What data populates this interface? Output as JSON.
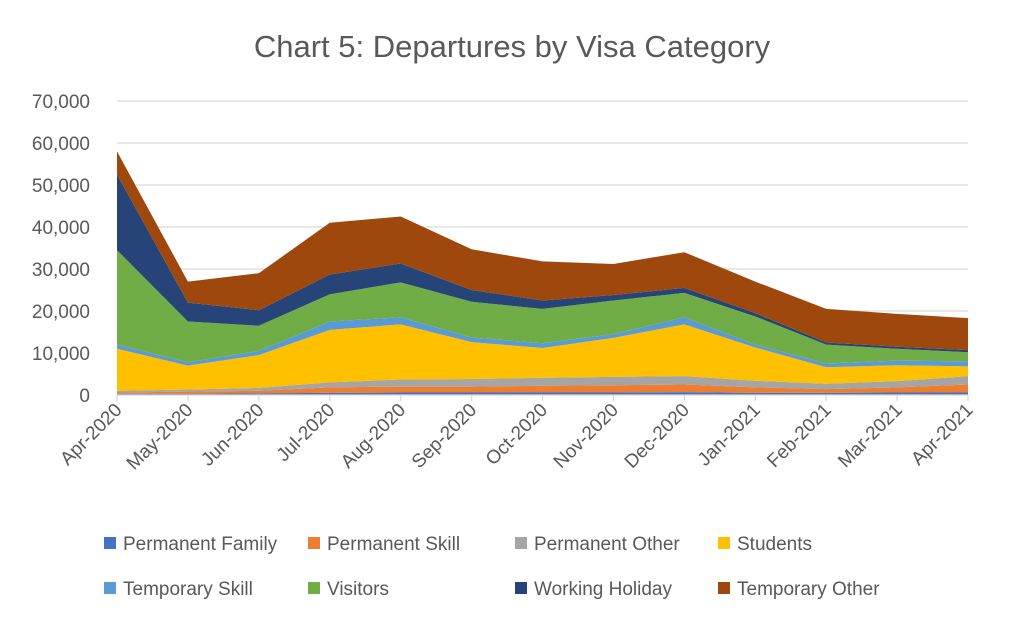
{
  "chart_data": {
    "type": "area",
    "stacked": true,
    "title": "Chart 5: Departures by Visa Category",
    "xlabel": "",
    "ylabel": "",
    "ylim": [
      0,
      70000
    ],
    "yticks": [
      0,
      10000,
      20000,
      30000,
      40000,
      50000,
      60000,
      70000
    ],
    "ytick_labels": [
      "0",
      "10,000",
      "20,000",
      "30,000",
      "40,000",
      "50,000",
      "60,000",
      "70,000"
    ],
    "grid": true,
    "legend_position": "bottom",
    "categories": [
      "Apr-2020",
      "May-2020",
      "Jun-2020",
      "Jul-2020",
      "Aug-2020",
      "Sep-2020",
      "Oct-2020",
      "Nov-2020",
      "Dec-2020",
      "Jan-2021",
      "Feb-2021",
      "Mar-2021",
      "Apr-2021"
    ],
    "series": [
      {
        "name": "Permanent Family",
        "color": "#4472C4",
        "values": [
          300,
          300,
          400,
          500,
          600,
          600,
          600,
          600,
          700,
          500,
          500,
          600,
          600
        ]
      },
      {
        "name": "Permanent Skill",
        "color": "#ED7D31",
        "values": [
          300,
          500,
          600,
          1300,
          1400,
          1400,
          1600,
          1700,
          1800,
          1300,
          900,
          1200,
          1900
        ]
      },
      {
        "name": "Permanent Other",
        "color": "#A5A5A5",
        "values": [
          400,
          500,
          700,
          1200,
          1700,
          1800,
          1900,
          2000,
          2000,
          1600,
          1300,
          1500,
          2000
        ]
      },
      {
        "name": "Students",
        "color": "#FFC000",
        "values": [
          10000,
          5700,
          7800,
          12500,
          13100,
          8800,
          7100,
          9300,
          12300,
          7900,
          3900,
          3800,
          2300
        ]
      },
      {
        "name": "Temporary Skill",
        "color": "#5B9BD5",
        "values": [
          1000,
          800,
          1000,
          2000,
          1700,
          1100,
          1100,
          900,
          1700,
          700,
          900,
          1100,
          1200
        ]
      },
      {
        "name": "Visitors",
        "color": "#70AD47",
        "values": [
          22500,
          9700,
          6000,
          6500,
          8300,
          8500,
          8200,
          8000,
          5800,
          6700,
          4500,
          2800,
          2200
        ]
      },
      {
        "name": "Working Holiday",
        "color": "#264478",
        "values": [
          18000,
          4500,
          3700,
          4700,
          4500,
          2800,
          2000,
          1300,
          1200,
          800,
          500,
          500,
          500
        ]
      },
      {
        "name": "Temporary Other",
        "color": "#9E480E",
        "values": [
          5500,
          5000,
          8800,
          12300,
          11200,
          9700,
          9300,
          7400,
          8500,
          7500,
          8000,
          7800,
          7600
        ]
      }
    ]
  }
}
